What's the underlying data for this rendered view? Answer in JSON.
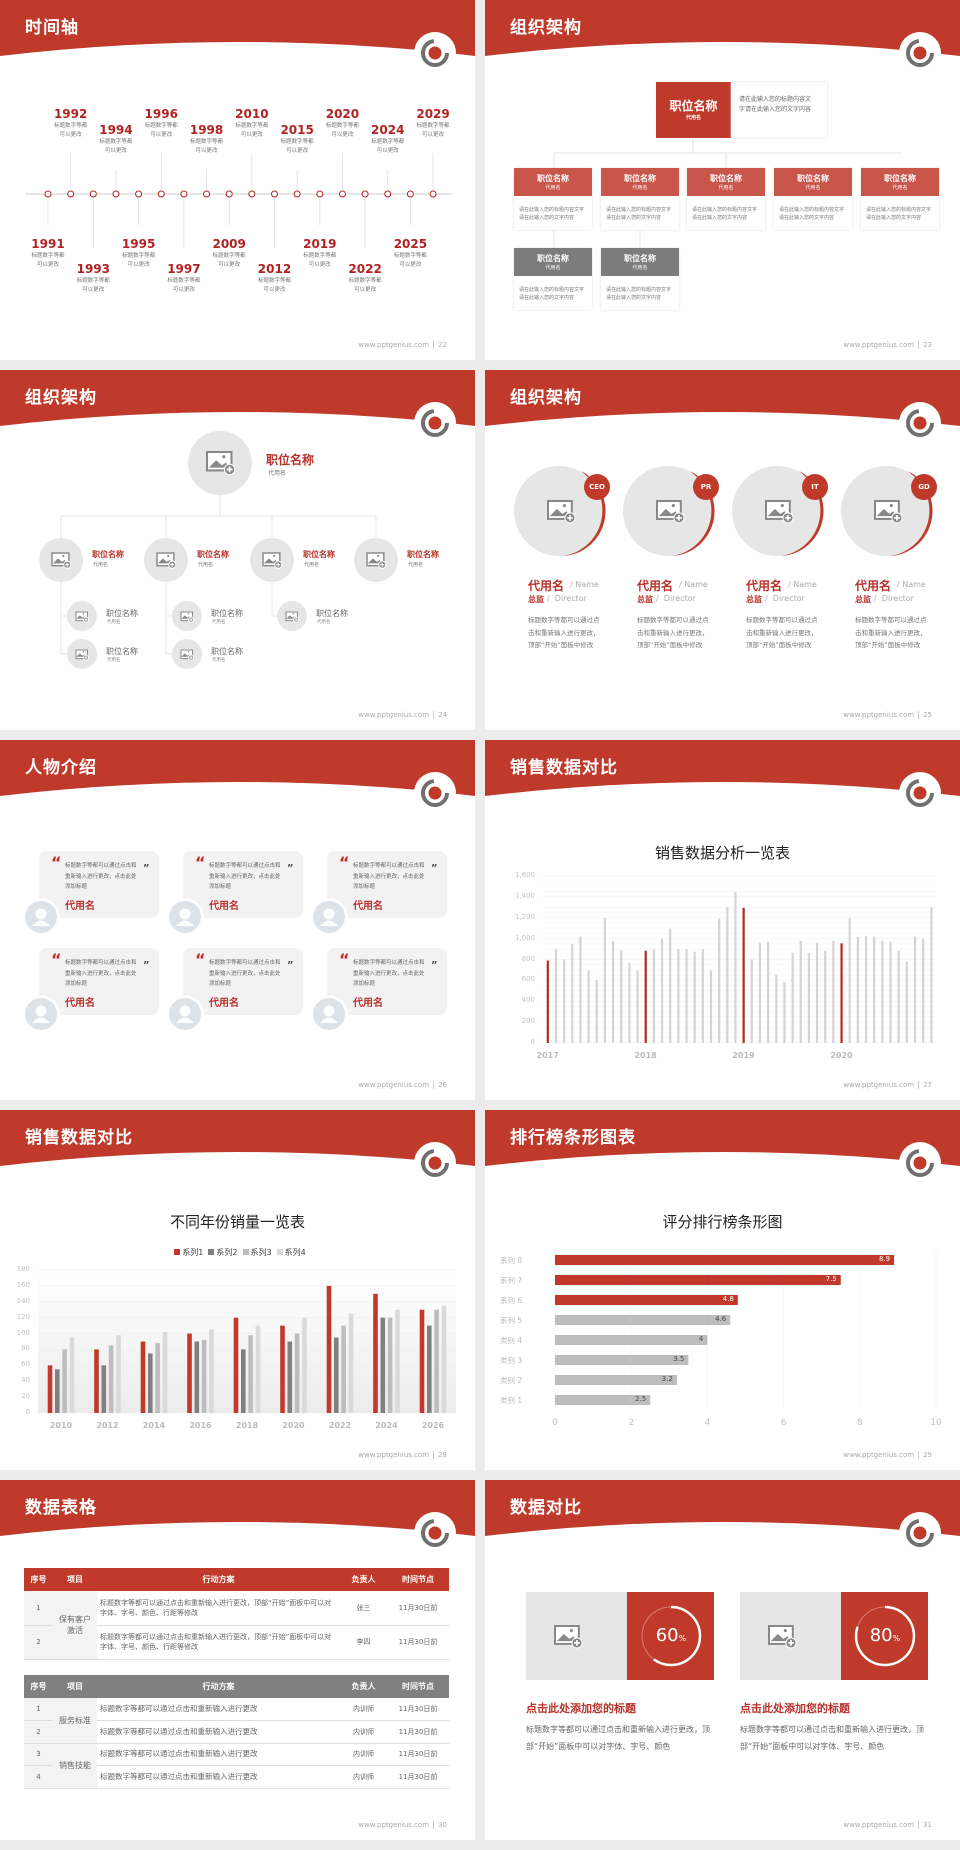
{
  "common": {
    "site": "www.pptgenius.com",
    "brand_red": "#bf3a2b",
    "gray": "#808080",
    "light_gray": "#e6e6e6"
  },
  "slides": [
    {
      "id": "timeline",
      "title": "时间轴",
      "page": "22",
      "items": [
        {
          "year": "1991",
          "line1": "标题数字等都",
          "line2": "可以更改"
        },
        {
          "year": "1992",
          "line1": "标题数字等都",
          "line2": "可以更改"
        },
        {
          "year": "1993",
          "line1": "标题数字等都",
          "line2": "可以更改"
        },
        {
          "year": "1994",
          "line1": "标题数字等都",
          "line2": "可以更改"
        },
        {
          "year": "1995",
          "line1": "标题数字等都",
          "line2": "可以更改"
        },
        {
          "year": "1996",
          "line1": "标题数字等都",
          "line2": "可以更改"
        },
        {
          "year": "1997",
          "line1": "标题数字等都",
          "line2": "可以更改"
        },
        {
          "year": "1998",
          "line1": "标题数字等都",
          "line2": "可以更改"
        },
        {
          "year": "2009",
          "line1": "标题数字等都",
          "line2": "可以更改"
        },
        {
          "year": "2010",
          "line1": "标题数字等都",
          "line2": "可以更改"
        },
        {
          "year": "2012",
          "line1": "标题数字等都",
          "line2": "可以更改"
        },
        {
          "year": "2015",
          "line1": "标题数字等都",
          "line2": "可以更改"
        },
        {
          "year": "2019",
          "line1": "标题数字等都",
          "line2": "可以更改"
        },
        {
          "year": "2020",
          "line1": "标题数字等都",
          "line2": "可以更改"
        },
        {
          "year": "2022",
          "line1": "标题数字等都",
          "line2": "可以更改"
        },
        {
          "year": "2024",
          "line1": "标题数字等都",
          "line2": "可以更改"
        },
        {
          "year": "2025",
          "line1": "标题数字等都",
          "line2": "可以更改"
        },
        {
          "year": "2029",
          "line1": "标题数字等都",
          "line2": "可以更改"
        }
      ]
    },
    {
      "id": "org1",
      "title": "组织架构",
      "page": "23",
      "top": {
        "title": "职位名称",
        "sub": "代用名",
        "desc": "请在此输入您的标题内容文字请在此输入您的文字内容"
      },
      "children": [
        {
          "title": "职位名称",
          "sub": "代用名",
          "desc": "请在此输入您的标题内容文字请在此输入您的文字内容",
          "tone": "red"
        },
        {
          "title": "职位名称",
          "sub": "代用名",
          "desc": "请在此输入您的标题内容文字请在此输入您的文字内容",
          "tone": "red"
        },
        {
          "title": "职位名称",
          "sub": "代用名",
          "desc": "请在此输入您的标题内容文字请在此输入您的文字内容",
          "tone": "red"
        },
        {
          "title": "职位名称",
          "sub": "代用名",
          "desc": "请在此输入您的标题内容文字请在此输入您的文字内容",
          "tone": "red"
        },
        {
          "title": "职位名称",
          "sub": "代用名",
          "desc": "请在此输入您的标题内容文字请在此输入您的文字内容",
          "tone": "red"
        },
        {
          "title": "职位名称",
          "sub": "代用名",
          "desc": "请在此输入您的标题内容文字请在此输入您的文字内容",
          "tone": "gray"
        },
        {
          "title": "职位名称",
          "sub": "代用名",
          "desc": "请在此输入您的标题内容文字请在此输入您的文字内容",
          "tone": "gray"
        }
      ]
    },
    {
      "id": "org2",
      "title": "组织架构",
      "page": "24",
      "top": {
        "title": "职位名称",
        "sub": "代用名"
      },
      "level2": [
        {
          "title": "职位名称",
          "sub": "代用名"
        },
        {
          "title": "职位名称",
          "sub": "代用名"
        },
        {
          "title": "职位名称",
          "sub": "代用名"
        },
        {
          "title": "职位名称",
          "sub": "代用名"
        }
      ],
      "level3": [
        {
          "title": "职位名称",
          "sub": "代用名"
        },
        {
          "title": "职位名称",
          "sub": "代用名"
        },
        {
          "title": "职位名称",
          "sub": "代用名"
        },
        {
          "title": "职位名称",
          "sub": "代用名"
        },
        {
          "title": "职位名称",
          "sub": "代用名"
        }
      ]
    },
    {
      "id": "team",
      "title": "组织架构",
      "page": "25",
      "members": [
        {
          "badge": "CEO",
          "name": "代用名",
          "name_en": "/ Name",
          "role": "总监",
          "role_en": "/  Director",
          "desc": "标题数字等都可以通过点击和重新输入进行更改，顶部“开始”面板中修改"
        },
        {
          "badge": "PR",
          "name": "代用名",
          "name_en": "/ Name",
          "role": "总监",
          "role_en": "/  Director",
          "desc": "标题数字等都可以通过点击和重新输入进行更改，顶部“开始”面板中修改"
        },
        {
          "badge": "IT",
          "name": "代用名",
          "name_en": "/ Name",
          "role": "总监",
          "role_en": "/  Director",
          "desc": "标题数字等都可以通过点击和重新输入进行更改，顶部“开始”面板中修改"
        },
        {
          "badge": "GD",
          "name": "代用名",
          "name_en": "/ Name",
          "role": "总监",
          "role_en": "/  Director",
          "desc": "标题数字等都可以通过点击和重新输入进行更改，顶部“开始”面板中修改"
        }
      ]
    },
    {
      "id": "people",
      "title": "人物介绍",
      "page": "26",
      "cards": [
        {
          "quote": "标题数字等都可以通过点击和重新输入进行更改，点击此处添加标题",
          "name": "代用名"
        },
        {
          "quote": "标题数字等都可以通过点击和重新输入进行更改，点击此处添加标题",
          "name": "代用名"
        },
        {
          "quote": "标题数字等都可以通过点击和重新输入进行更改，点击此处添加标题",
          "name": "代用名"
        },
        {
          "quote": "标题数字等都可以通过点击和重新输入进行更改，点击此处添加标题",
          "name": "代用名"
        },
        {
          "quote": "标题数字等都可以通过点击和重新输入进行更改，点击此处添加标题",
          "name": "代用名"
        },
        {
          "quote": "标题数字等都可以通过点击和重新输入进行更改，点击此处添加标题",
          "name": "代用名"
        }
      ],
      "quote_open": "“",
      "quote_close": "”"
    },
    {
      "id": "sales",
      "title": "销售数据对比",
      "page": "27"
    },
    {
      "id": "sales2",
      "title": "销售数据对比",
      "page": "28"
    },
    {
      "id": "ranking",
      "title": "排行榜条形图表",
      "page": "29"
    },
    {
      "id": "table",
      "title": "数据表格",
      "page": "30",
      "headers": [
        "序号",
        "项目",
        "行动方案",
        "负责人",
        "时间节点"
      ],
      "table1": {
        "group": "保有客户激活",
        "rows": [
          {
            "no": "1",
            "plan": "标题数字等都可以通过点击和重新输入进行更改，顶部“开始”面板中可以对字体、字号、颜色、行距等修改",
            "owner": "张三",
            "deadline": "11月30日前"
          },
          {
            "no": "2",
            "plan": "标题数字等都可以通过点击和重新输入进行更改，顶部“开始”面板中可以对字体、字号、颜色、行距等修改",
            "owner": "李四",
            "deadline": "11月30日前"
          }
        ]
      },
      "table2": {
        "groups": [
          "服务标准",
          "销售技能"
        ],
        "rows": [
          {
            "no": "1",
            "plan": "标题数字等都可以通过点击和重新输入进行更改",
            "owner": "内训师",
            "deadline": "11月30日前"
          },
          {
            "no": "2",
            "plan": "标题数字等都可以通过点击和重新输入进行更改",
            "owner": "内训师",
            "deadline": "11月30日前"
          },
          {
            "no": "3",
            "plan": "标题数字等都可以通过点击和重新输入进行更改",
            "owner": "内训师",
            "deadline": "11月30日前"
          },
          {
            "no": "4",
            "plan": "标题数字等都可以通过点击和重新输入进行更改",
            "owner": "内训师",
            "deadline": "11月30日前"
          }
        ]
      }
    },
    {
      "id": "compare",
      "title": "数据对比",
      "page": "31",
      "cards": [
        {
          "percent": 60,
          "label": "60",
          "unit": "%",
          "heading": "点击此处添加您的标题",
          "desc": "标题数字等都可以通过点击和重新输入进行更改，顶部“开始”面板中可以对字体、字号、颜色"
        },
        {
          "percent": 80,
          "label": "80",
          "unit": "%",
          "heading": "点击此处添加您的标题",
          "desc": "标题数字等都可以通过点击和重新输入进行更改，顶部“开始”面板中可以对字体、字号、颜色"
        }
      ]
    }
  ],
  "chart_data": [
    {
      "type": "bar",
      "title": "销售数据分析一览表",
      "x_tick_labels": [
        "2017",
        "2018",
        "2019",
        "2020"
      ],
      "periods_per_year": 12,
      "ylim": [
        0,
        1600
      ],
      "yticks": [
        "0",
        "200",
        "400",
        "600",
        "800",
        "1,000",
        "1,200",
        "1,400",
        "1,600"
      ],
      "grid": true,
      "highlight_color": "#b52a1e",
      "bar_color": "#d4d4d4",
      "values": [
        790,
        900,
        800,
        950,
        1020,
        695,
        600,
        1200,
        980,
        890,
        770,
        695,
        885,
        900,
        1000,
        1095,
        900,
        900,
        875,
        900,
        695,
        1195,
        1300,
        1450,
        1295,
        800,
        960,
        970,
        655,
        585,
        865,
        980,
        860,
        960,
        885,
        980,
        955,
        1195,
        1015,
        1025,
        1020,
        980,
        970,
        885,
        780,
        1020,
        995,
        1300
      ]
    },
    {
      "type": "bar",
      "title": "不同年份销量一览表",
      "categories": [
        "2010",
        "2012",
        "2014",
        "2016",
        "2018",
        "2020",
        "2022",
        "2024",
        "2026"
      ],
      "ylim": [
        0,
        180
      ],
      "yticks": [
        "0",
        "20",
        "40",
        "60",
        "80",
        "100",
        "120",
        "140",
        "160",
        "180"
      ],
      "grid": true,
      "legend": "top",
      "series": [
        {
          "name": "系列1",
          "color": "#c0392b",
          "values": [
            60,
            80,
            90,
            100,
            120,
            110,
            160,
            150,
            130
          ]
        },
        {
          "name": "系列2",
          "color": "#808080",
          "values": [
            55,
            60,
            75,
            90,
            80,
            90,
            95,
            120,
            110
          ]
        },
        {
          "name": "系列3",
          "color": "#bdbdbd",
          "values": [
            80,
            85,
            88,
            92,
            98,
            100,
            110,
            120,
            130
          ]
        },
        {
          "name": "系列4",
          "color": "#dadada",
          "values": [
            95,
            98,
            102,
            105,
            110,
            120,
            125,
            130,
            135
          ]
        }
      ]
    },
    {
      "type": "bar",
      "orientation": "horizontal",
      "title": "评分排行榜条形图",
      "categories": [
        "系列 8",
        "系列 7",
        "系列 6",
        "系列 5",
        "类别 4",
        "类别 3",
        "类别 2",
        "类别 1"
      ],
      "values": [
        8.9,
        7.5,
        4.8,
        4.6,
        4,
        3.5,
        3.2,
        2.5
      ],
      "value_labels": [
        "8.9",
        "7.5",
        "4.8",
        "4.6",
        "4",
        "3.5",
        "3.2",
        "2.5"
      ],
      "colors": [
        "#c0392b",
        "#c0392b",
        "#c0392b",
        "#bdbdbd",
        "#bdbdbd",
        "#bdbdbd",
        "#bdbdbd",
        "#bdbdbd"
      ],
      "xlim": [
        0,
        10
      ],
      "xticks": [
        "0",
        "2",
        "4",
        "6",
        "8",
        "10"
      ],
      "grid": true
    }
  ]
}
